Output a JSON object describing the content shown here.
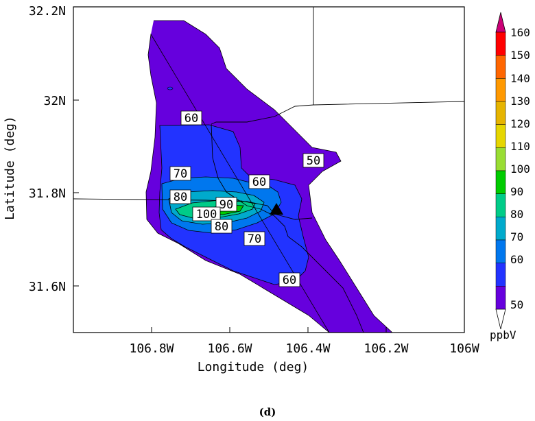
{
  "caption": "(d)",
  "map": {
    "x_axis_title": "Longitude (deg)",
    "y_axis_title": "Latitude (deg)",
    "x_ticks": [
      "106.8W",
      "106.6W",
      "106.4W",
      "106.2W",
      "106W"
    ],
    "y_ticks": [
      "32.2N",
      "32N",
      "31.8N",
      "31.6N"
    ],
    "contour_labels": [
      "60",
      "50",
      "70",
      "60",
      "80",
      "90",
      "100",
      "80",
      "70",
      "60"
    ],
    "marker_shape": "black-triangle"
  },
  "colorbar": {
    "unit": "ppbV",
    "levels": [
      "160",
      "150",
      "140",
      "130",
      "120",
      "110",
      "100",
      "90",
      "80",
      "70",
      "60",
      "50"
    ],
    "colors": [
      "#ff0000",
      "#ff6600",
      "#ff9900",
      "#e6b400",
      "#e6d600",
      "#99dd33",
      "#00cc00",
      "#00cc88",
      "#00aacc",
      "#0077ee",
      "#2233ff",
      "#6600dd"
    ],
    "top_arrow_color": "#cc0077",
    "bottom_arrow_color": "#ffffff"
  },
  "chart_data": {
    "type": "heatmap",
    "title": "",
    "xlabel": "Longitude (deg)",
    "ylabel": "Latitude (deg)",
    "xlim": [
      -107.0,
      -106.0
    ],
    "ylim": [
      31.5,
      32.2
    ],
    "colorbar_unit": "ppbV",
    "contour_levels": [
      50,
      60,
      70,
      80,
      90,
      100,
      110,
      120,
      130,
      140,
      150,
      160
    ],
    "fill_colors": {
      "50": "#6600dd",
      "60": "#2233ff",
      "70": "#0077ee",
      "80": "#00aacc",
      "90": "#00cc88",
      "100": "#00cc00"
    },
    "marker": {
      "lon": -106.48,
      "lat": 31.77
    },
    "peak_region": {
      "lon": -106.58,
      "lat": 31.76,
      "max_level_shown": 100
    }
  }
}
